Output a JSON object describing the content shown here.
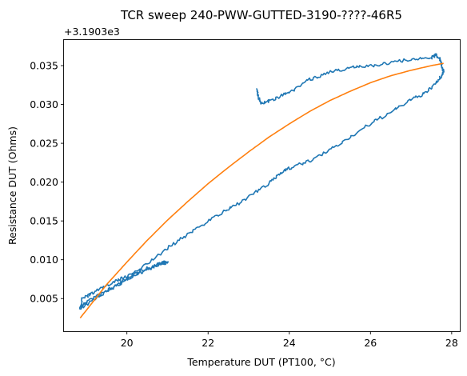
{
  "chart_data": {
    "type": "line",
    "title": "TCR sweep 240-PWW-GUTTED-3190-????-46R5",
    "xlabel": "Temperature DUT (PT100, °C)",
    "ylabel": "Resistance DUT (Ohms)",
    "y_offset_label": "+3.1903e3",
    "xlim": [
      18.45,
      28.2
    ],
    "ylim": [
      0.0008,
      0.0383
    ],
    "x_ticks": [
      20,
      22,
      24,
      26,
      28
    ],
    "x_tick_labels": [
      "20",
      "22",
      "24",
      "26",
      "28"
    ],
    "y_ticks": [
      0.005,
      0.01,
      0.015,
      0.02,
      0.025,
      0.03,
      0.035
    ],
    "y_tick_labels": [
      "0.005",
      "0.010",
      "0.015",
      "0.020",
      "0.025",
      "0.030",
      "0.035"
    ],
    "grid": false,
    "series": [
      {
        "color": "#1f77b4",
        "noisy": true,
        "x": [
          18.85,
          19.0,
          19.4,
          19.7,
          20.0,
          20.3,
          20.6,
          20.8,
          21.0,
          20.8,
          20.5,
          20.0,
          19.6,
          19.2,
          18.9,
          18.85,
          19.3,
          19.6,
          20.0,
          20.5,
          21.0,
          21.5,
          22.0,
          22.5,
          23.0,
          23.5,
          23.8,
          24.0,
          24.5,
          25.0,
          25.5,
          26.0,
          26.5,
          27.0,
          27.4,
          27.7,
          27.8,
          27.75,
          27.7,
          27.6,
          27.5,
          27.0,
          26.5,
          26.0,
          25.5,
          25.0,
          24.5,
          24.0,
          23.6,
          23.3,
          23.25,
          23.2
        ],
        "y": [
          0.0038,
          0.0046,
          0.0057,
          0.0065,
          0.0075,
          0.0083,
          0.009,
          0.0095,
          0.0097,
          0.0094,
          0.0089,
          0.0079,
          0.0069,
          0.0059,
          0.0049,
          0.0036,
          0.0053,
          0.0063,
          0.0075,
          0.0095,
          0.0115,
          0.0133,
          0.015,
          0.0165,
          0.0181,
          0.0198,
          0.0213,
          0.0218,
          0.0227,
          0.0241,
          0.0258,
          0.0275,
          0.029,
          0.0306,
          0.0316,
          0.0333,
          0.0342,
          0.0352,
          0.036,
          0.0364,
          0.036,
          0.0358,
          0.0354,
          0.035,
          0.0347,
          0.0342,
          0.0332,
          0.0316,
          0.0306,
          0.0302,
          0.0308,
          0.032
        ]
      },
      {
        "color": "#ff7f0e",
        "noisy": false,
        "x": [
          18.85,
          19.5,
          20.0,
          20.5,
          21.0,
          21.5,
          22.0,
          22.5,
          23.0,
          23.5,
          24.0,
          24.5,
          25.0,
          25.5,
          26.0,
          26.5,
          27.0,
          27.5,
          27.8
        ],
        "y": [
          0.0025,
          0.0068,
          0.0097,
          0.0125,
          0.0151,
          0.0175,
          0.0198,
          0.0219,
          0.0239,
          0.0258,
          0.0275,
          0.0291,
          0.0305,
          0.0317,
          0.0328,
          0.0337,
          0.0344,
          0.035,
          0.0353
        ]
      }
    ]
  }
}
